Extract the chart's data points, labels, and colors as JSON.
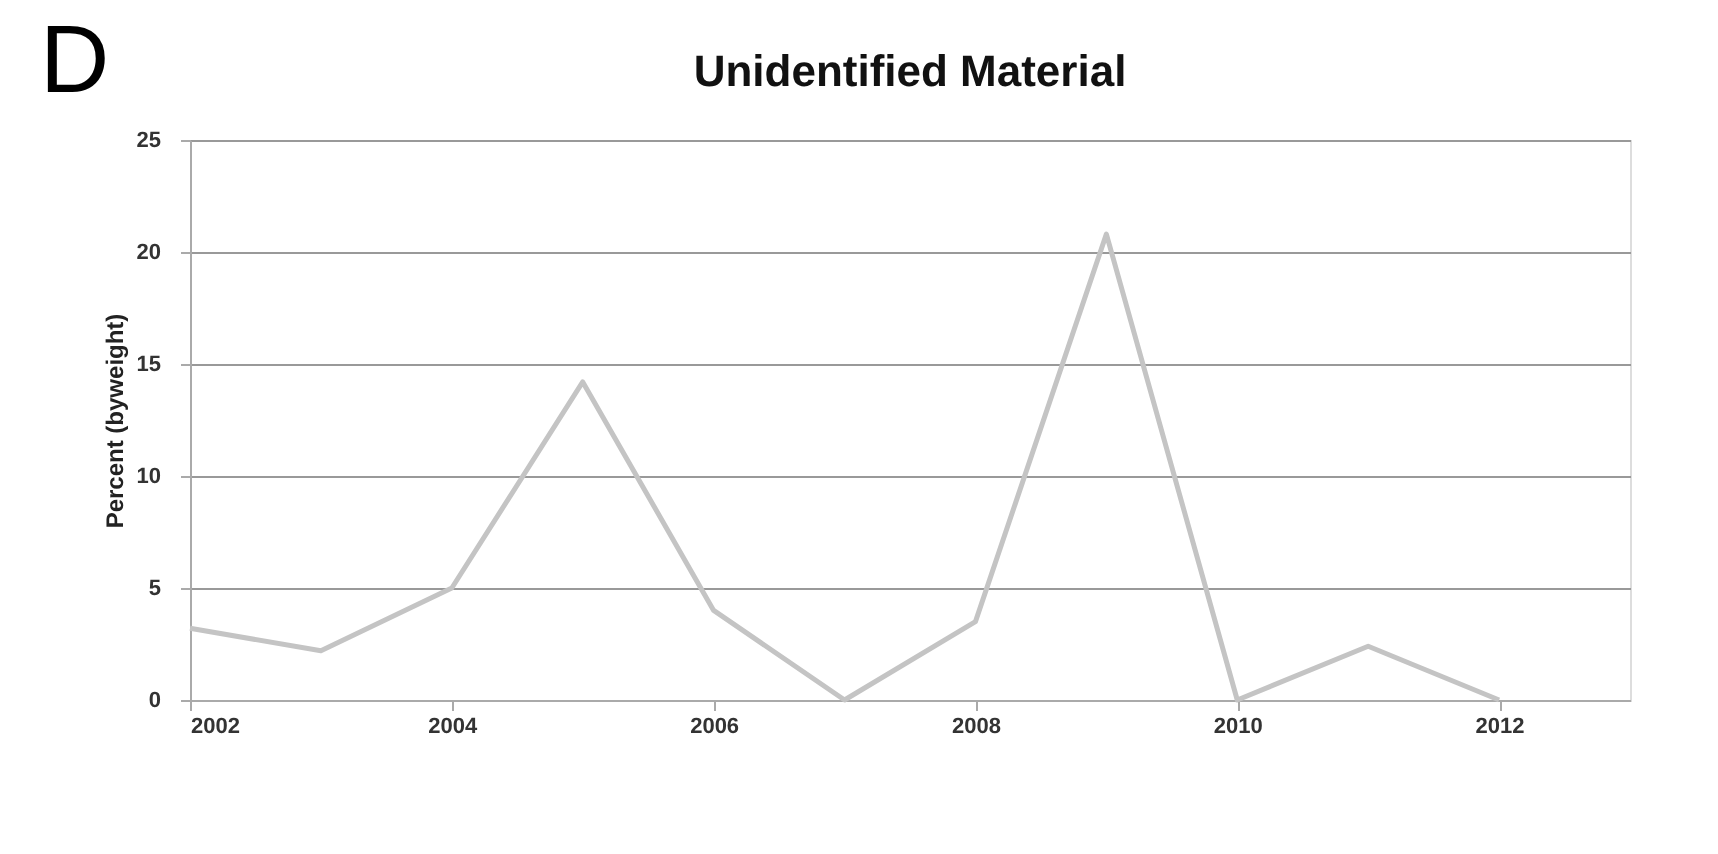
{
  "chart_data": {
    "type": "line",
    "title": "Unidentified Material",
    "ylabel": "Percent (byweight)",
    "annotations": [
      "D"
    ],
    "x": [
      2002,
      2003,
      2004,
      2005,
      2006,
      2007,
      2008,
      2009,
      2010,
      2011,
      2012
    ],
    "series": [
      {
        "color": "#c4c4c4",
        "values": [
          3.2,
          2.2,
          5,
          14.2,
          4,
          0,
          3.5,
          20.8,
          0,
          2.4,
          0
        ]
      }
    ],
    "xlim": [
      2002,
      2013
    ],
    "xticks": [
      2002,
      2004,
      2006,
      2008,
      2010,
      2012
    ],
    "ylim": [
      0,
      25
    ],
    "yticks": [
      0,
      5,
      10,
      15,
      20,
      25
    ],
    "grid": "y",
    "legend": false,
    "marker": "none",
    "line_style": "solid"
  }
}
